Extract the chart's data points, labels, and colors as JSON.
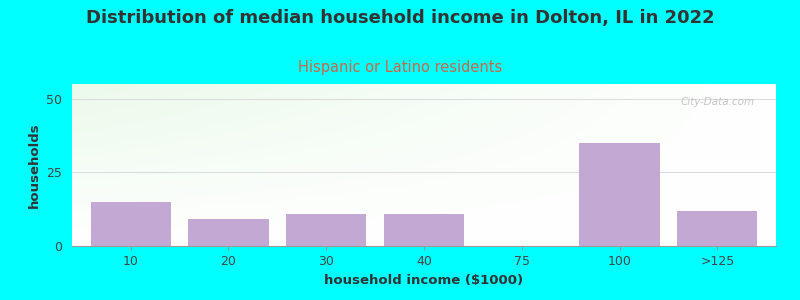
{
  "title": "Distribution of median household income in Dolton, IL in 2022",
  "subtitle": "Hispanic or Latino residents",
  "xlabel": "household income ($1000)",
  "ylabel": "households",
  "background_color": "#00FFFF",
  "bar_color": "#c4a8d4",
  "grid_color": "#dddddd",
  "categories": [
    "10",
    "20",
    "30",
    "40",
    "75",
    "100",
    ">125"
  ],
  "values": [
    15,
    9,
    11,
    11,
    0,
    35,
    12
  ],
  "bar_positions": [
    0,
    1,
    2,
    3,
    4,
    5,
    6
  ],
  "ylim": [
    0,
    55
  ],
  "yticks": [
    0,
    25,
    50
  ],
  "title_fontsize": 13,
  "subtitle_fontsize": 10.5,
  "subtitle_color": "#cc6644",
  "axis_label_fontsize": 9.5,
  "tick_fontsize": 9,
  "watermark_text": "City-Data.com",
  "watermark_color": "#bbbbbb"
}
